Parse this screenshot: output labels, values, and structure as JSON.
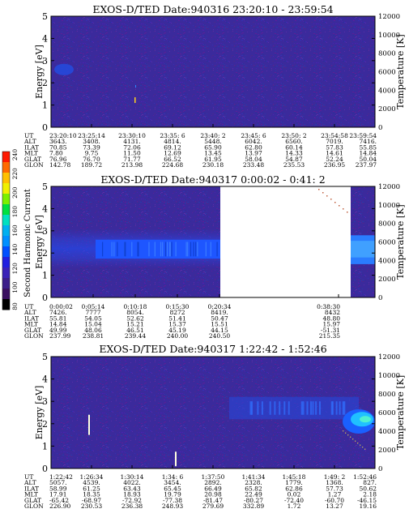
{
  "colorbar": {
    "label": "Second Harmonic Current",
    "ticks": [
      "240",
      "220",
      "200",
      "180",
      "160",
      "140",
      "120",
      "100",
      "80"
    ],
    "colors": [
      "#ff1a00",
      "#ff6a00",
      "#ffc000",
      "#f0f000",
      "#7cf000",
      "#00e040",
      "#00e0c0",
      "#00b0f0",
      "#0090ff",
      "#0050ff",
      "#2020e0",
      "#3a22b8",
      "#3c1e8a",
      "#3a1060",
      "#000000"
    ]
  },
  "chart_data": [
    {
      "type": "heatmap",
      "title": "EXOS-D/TED   Date:940316  23:20:10 - 23:59:54",
      "ylabel": "Energy [eV]",
      "y2label": "Temperature [K]",
      "yticks": [
        "0",
        "1",
        "2",
        "3",
        "4",
        "5"
      ],
      "ylim": [
        0,
        5
      ],
      "y2ticks": [
        "0",
        "2000",
        "4000",
        "6000",
        "8000",
        "10000",
        "12000"
      ],
      "y2lim": [
        0,
        12000
      ],
      "row_labels": [
        "UT",
        "ALT",
        "ILAT",
        "MLT",
        "GLAT",
        "GLON"
      ],
      "columns": [
        [
          "23:20:10",
          "3643.",
          "70.85",
          "7.80",
          "76.96",
          "142.78"
        ],
        [
          "23:25:14",
          "3408.",
          "73.39",
          "9.75",
          "76.70",
          "189.72"
        ],
        [
          "23:30:10",
          "4131.",
          "72.06",
          "11.50",
          "71.77",
          "213.98"
        ],
        [
          "23:35: 6",
          "4814.",
          "69.12",
          "12.69",
          "66.52",
          "224.68"
        ],
        [
          "23:40: 2",
          "5448.",
          "65.90",
          "13.45",
          "61.95",
          "230.18"
        ],
        [
          "23:45: 6",
          "6042.",
          "62.80",
          "13.97",
          "58.04",
          "233.48"
        ],
        [
          "23:50: 2",
          "6560.",
          "60.14",
          "14.33",
          "54.87",
          "235.53"
        ],
        [
          "23:54:58",
          "7019.",
          "57.83",
          "14.61",
          "52.24",
          "236.95"
        ],
        [
          "23:59:54",
          "7416.",
          "55.85",
          "14.84",
          "50.04",
          "237.97"
        ]
      ]
    },
    {
      "type": "heatmap",
      "title": "EXOS-D/TED   Date:940317  0:00:02 - 0:41: 2",
      "ylabel": "Energy [eV]",
      "y2label": "Temperature [K]",
      "yticks": [
        "0",
        "1",
        "2",
        "3",
        "4",
        "5"
      ],
      "ylim": [
        0,
        5
      ],
      "y2ticks": [
        "0",
        "2000",
        "4000",
        "6000",
        "8000",
        "10000",
        "12000"
      ],
      "y2lim": [
        0,
        12000
      ],
      "row_labels": [
        "UT",
        "ALT",
        "ILAT",
        "MLT",
        "GLAT",
        "GLON"
      ],
      "columns": [
        [
          "0:00:02",
          "7426.",
          "55.81",
          "14.84",
          "49.99",
          "237.99"
        ],
        [
          "0:05:14",
          "7777",
          "54.05",
          "15.04",
          "48.06",
          "238.81"
        ],
        [
          "0:10:18",
          "8054.",
          "52.62",
          "15.21",
          "46.51",
          "239.44"
        ],
        [
          "0:15:30",
          "8272",
          "51.41",
          "15.37",
          "45.19",
          "240.00"
        ],
        [
          "0:20:34",
          "8419.",
          "50.47",
          "15.51",
          "44.15",
          "240.50"
        ],
        [
          "0:38:30",
          "8432",
          "48.80",
          "15.97",
          "-51.31",
          "215.35"
        ]
      ],
      "data_gap": [
        "0:20:34",
        "0:38:30"
      ]
    },
    {
      "type": "heatmap",
      "title": "EXOS-D/TED   Date:940317  1:22:42 - 1:52:46",
      "ylabel": "Energy [eV]",
      "y2label": "Temperature [K]",
      "yticks": [
        "0",
        "1",
        "2",
        "3",
        "4",
        "5"
      ],
      "ylim": [
        0,
        5
      ],
      "y2ticks": [
        "0",
        "2000",
        "4000",
        "6000",
        "8000",
        "10000",
        "12000"
      ],
      "y2lim": [
        0,
        12000
      ],
      "row_labels": [
        "UT",
        "ALT",
        "ILAT",
        "MLT",
        "GLAT",
        "GLON"
      ],
      "columns": [
        [
          "1:22:42",
          "5057.",
          "58.99",
          "17.91",
          "-65.42",
          "226.90"
        ],
        [
          "1:26:34",
          "4539.",
          "61.25",
          "18.35",
          "-68.97",
          "230.53"
        ],
        [
          "1:30:14",
          "4022.",
          "63.43",
          "18.93",
          "-72.92",
          "236.38"
        ],
        [
          "1:34: 6",
          "3454.",
          "65.45",
          "19.79",
          "-77.38",
          "248.93"
        ],
        [
          "1:37:50",
          "2892.",
          "66.49",
          "20.98",
          "-81.47",
          "279.69"
        ],
        [
          "1:41:34",
          "2328.",
          "65.82",
          "22.49",
          "-80.27",
          "332.89"
        ],
        [
          "1:45:18",
          "1779.",
          "62.86",
          "0.02",
          "-72.40",
          "1.72"
        ],
        [
          "1:49: 2",
          "1368.",
          "57.73",
          "1.27",
          "-60.70",
          "13.27"
        ],
        [
          "1:52:46",
          "827.",
          "50.62",
          "2.18",
          "-46.15",
          "19.16"
        ]
      ]
    }
  ]
}
